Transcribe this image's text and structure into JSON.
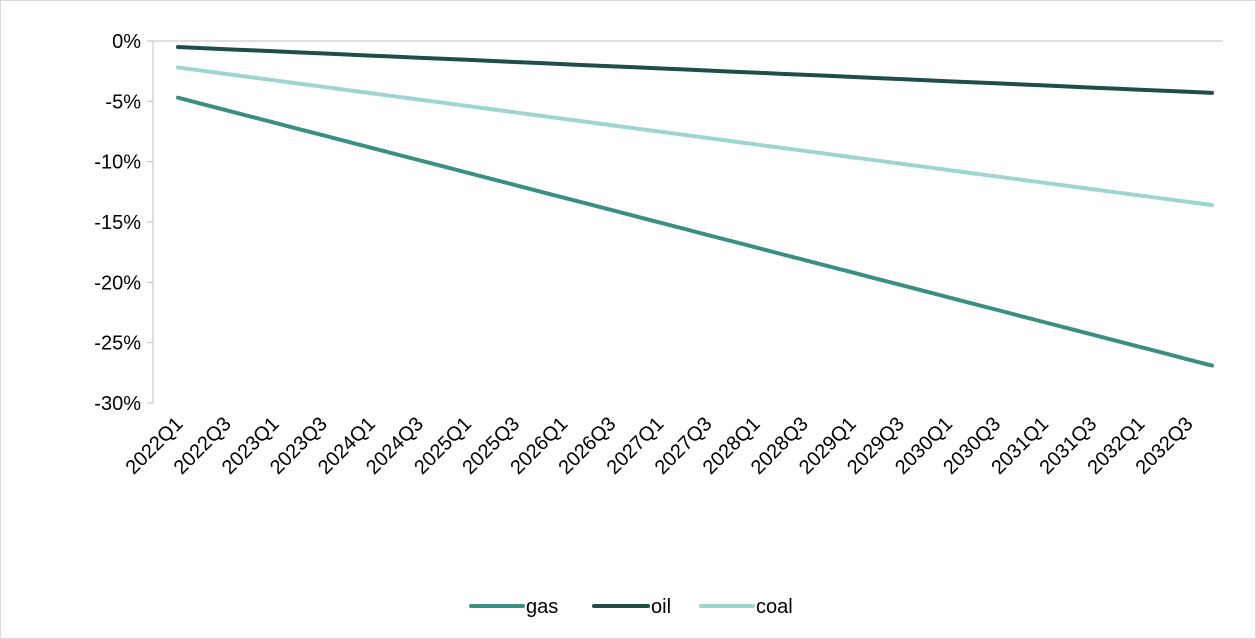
{
  "chart_data": {
    "type": "line",
    "title": "",
    "xlabel": "",
    "ylabel": "",
    "x": [
      "2022Q1",
      "2022Q2",
      "2022Q3",
      "2022Q4",
      "2023Q1",
      "2023Q2",
      "2023Q3",
      "2023Q4",
      "2024Q1",
      "2024Q2",
      "2024Q3",
      "2024Q4",
      "2025Q1",
      "2025Q2",
      "2025Q3",
      "2025Q4",
      "2026Q1",
      "2026Q2",
      "2026Q3",
      "2026Q4",
      "2027Q1",
      "2027Q2",
      "2027Q3",
      "2027Q4",
      "2028Q1",
      "2028Q2",
      "2028Q3",
      "2028Q4",
      "2029Q1",
      "2029Q2",
      "2029Q3",
      "2029Q4",
      "2030Q1",
      "2030Q2",
      "2030Q3",
      "2030Q4",
      "2031Q1",
      "2031Q2",
      "2031Q3",
      "2031Q4",
      "2032Q1",
      "2032Q2",
      "2032Q3",
      "2032Q4"
    ],
    "x_tick_labels": [
      "2022Q1",
      "2022Q3",
      "2023Q1",
      "2023Q3",
      "2024Q1",
      "2024Q3",
      "2025Q1",
      "2025Q3",
      "2026Q1",
      "2026Q3",
      "2027Q1",
      "2027Q3",
      "2028Q1",
      "2028Q3",
      "2029Q1",
      "2029Q3",
      "2030Q1",
      "2030Q3",
      "2031Q1",
      "2031Q3",
      "2032Q1",
      "2032Q3"
    ],
    "y_ticks": [
      0,
      -5,
      -10,
      -15,
      -20,
      -25,
      -30
    ],
    "y_tick_labels": [
      "0%",
      "-5%",
      "-10%",
      "-15%",
      "-20%",
      "-25%",
      "-30%"
    ],
    "ylim": [
      -30,
      0
    ],
    "grid": false,
    "legend_position": "bottom",
    "series": [
      {
        "name": "gas",
        "color": "#3a8f84",
        "start": -4.7,
        "end": -26.9
      },
      {
        "name": "oil",
        "color": "#1f4e48",
        "start": -0.5,
        "end": -4.3
      },
      {
        "name": "coal",
        "color": "#9fd5d1",
        "start": -2.2,
        "end": -13.6
      }
    ]
  }
}
